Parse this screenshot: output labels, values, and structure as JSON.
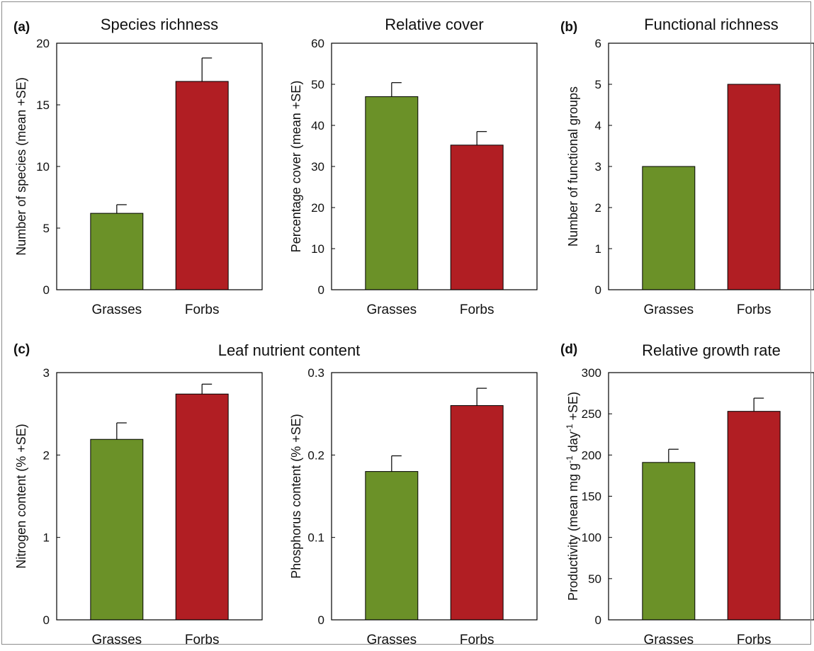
{
  "colors": {
    "grasses": "#6b9128",
    "forbs": "#b11e23",
    "axis": "#000000"
  },
  "panel_labels": [
    "(a)",
    "(b)",
    "(c)",
    "(d)"
  ],
  "group_title_c": "Leaf nutrient content",
  "chart_data": [
    {
      "type": "bar",
      "title": "Species richness",
      "ylabel": "Number of species (mean +SE)",
      "categories": [
        "Grasses",
        "Forbs"
      ],
      "values": [
        6.2,
        16.9
      ],
      "errors": [
        0.7,
        1.9
      ],
      "ylim": [
        0,
        20
      ],
      "yticks": [
        "0",
        "5",
        "10",
        "15",
        "20"
      ],
      "ytick_values": [
        0,
        5,
        10,
        15,
        20
      ]
    },
    {
      "type": "bar",
      "title": "Relative cover",
      "ylabel": "Percentage cover (mean +SE)",
      "categories": [
        "Grasses",
        "Forbs"
      ],
      "values": [
        47,
        35.2
      ],
      "errors": [
        3.4,
        3.3
      ],
      "ylim": [
        0,
        60
      ],
      "yticks": [
        "0",
        "10",
        "20",
        "30",
        "40",
        "50",
        "60"
      ],
      "ytick_values": [
        0,
        10,
        20,
        30,
        40,
        50,
        60
      ]
    },
    {
      "type": "bar",
      "title": "Functional richness",
      "ylabel": "Number of functional groups",
      "categories": [
        "Grasses",
        "Forbs"
      ],
      "values": [
        3,
        5
      ],
      "errors": [
        0,
        0
      ],
      "ylim": [
        0,
        6
      ],
      "yticks": [
        "0",
        "1",
        "2",
        "3",
        "4",
        "5",
        "6"
      ],
      "ytick_values": [
        0,
        1,
        2,
        3,
        4,
        5,
        6
      ]
    },
    {
      "type": "bar",
      "title": "",
      "ylabel": "Nitrogen content (% +SE)",
      "categories": [
        "Grasses",
        "Forbs"
      ],
      "values": [
        2.19,
        2.74
      ],
      "errors": [
        0.2,
        0.12
      ],
      "ylim": [
        0,
        3
      ],
      "yticks": [
        "0",
        "1",
        "2",
        "3"
      ],
      "ytick_values": [
        0,
        1,
        2,
        3
      ]
    },
    {
      "type": "bar",
      "title": "",
      "ylabel": "Phosphorus content (% +SE)",
      "categories": [
        "Grasses",
        "Forbs"
      ],
      "values": [
        0.18,
        0.26
      ],
      "errors": [
        0.019,
        0.021
      ],
      "ylim": [
        0,
        0.3
      ],
      "yticks": [
        "0",
        "0.1",
        "0.2",
        "0.3"
      ],
      "ytick_values": [
        0,
        0.1,
        0.2,
        0.3
      ]
    },
    {
      "type": "bar",
      "title": "Relative growth rate",
      "ylabel": "Productivity (mean mg g-1 day-1 +SE)",
      "ylabel_parts": [
        "Productivity (mean mg g",
        "-1",
        " day",
        "-1",
        " +SE)"
      ],
      "categories": [
        "Grasses",
        "Forbs"
      ],
      "values": [
        191,
        253
      ],
      "errors": [
        16,
        16
      ],
      "ylim": [
        0,
        300
      ],
      "yticks": [
        "0",
        "50",
        "100",
        "150",
        "200",
        "250",
        "300"
      ],
      "ytick_values": [
        0,
        50,
        100,
        150,
        200,
        250,
        300
      ]
    }
  ]
}
